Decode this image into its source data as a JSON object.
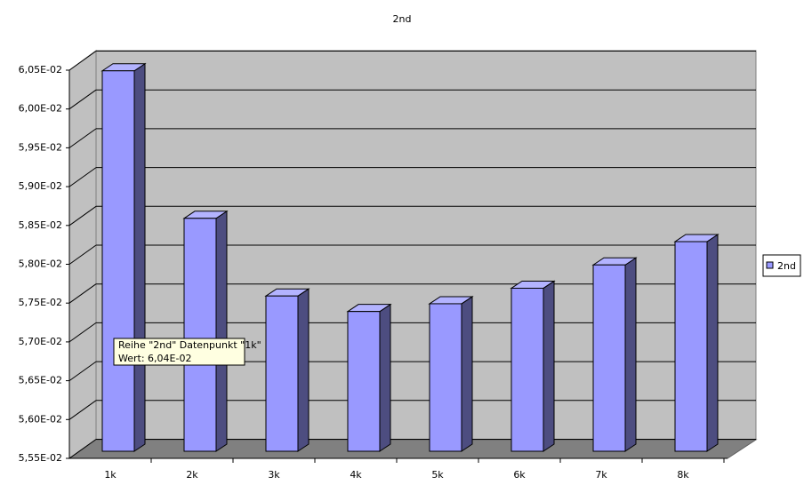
{
  "chart_data": {
    "type": "bar3d",
    "title": "2nd",
    "categories": [
      "1k",
      "2k",
      "3k",
      "4k",
      "5k",
      "6k",
      "7k",
      "8k"
    ],
    "series": [
      {
        "name": "2nd",
        "color": "#9999ff",
        "values": [
          0.0604,
          0.0585,
          0.0575,
          0.0573,
          0.0574,
          0.0576,
          0.0579,
          0.0582
        ]
      }
    ],
    "ylim": [
      0.0555,
      0.0605
    ],
    "yticks": [
      {
        "value": 0.0555,
        "label": "5,55E-02"
      },
      {
        "value": 0.056,
        "label": "5,60E-02"
      },
      {
        "value": 0.0565,
        "label": "5,65E-02"
      },
      {
        "value": 0.057,
        "label": "5,70E-02"
      },
      {
        "value": 0.0575,
        "label": "5,75E-02"
      },
      {
        "value": 0.058,
        "label": "5,80E-02"
      },
      {
        "value": 0.0585,
        "label": "5,85E-02"
      },
      {
        "value": 0.059,
        "label": "5,90E-02"
      },
      {
        "value": 0.0595,
        "label": "5,95E-02"
      },
      {
        "value": 0.06,
        "label": "6,00E-02"
      },
      {
        "value": 0.0605,
        "label": "6,05E-02"
      }
    ],
    "grid": true,
    "legend": "right",
    "tooltip": [
      "Reihe \"2nd\" Datenpunkt \"1k\"",
      "Wert: 6,04E-02"
    ]
  }
}
